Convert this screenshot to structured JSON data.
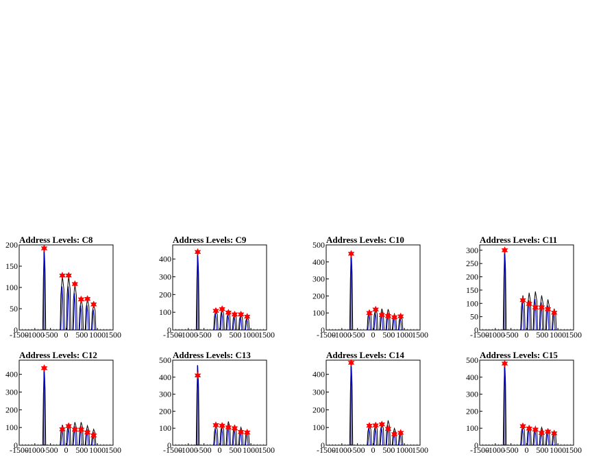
{
  "chart_data": [
    {
      "type": "histogram",
      "title": "Address Levels: C8",
      "xlim": [
        -1500,
        1500
      ],
      "ylim": [
        0,
        200
      ],
      "yticks": [
        0,
        50,
        100,
        150,
        200
      ],
      "xticks": [
        -1500,
        -1000,
        -500,
        0,
        500,
        1000,
        1500
      ],
      "peaks": [
        {
          "x": -700,
          "y": 192
        },
        {
          "x": -120,
          "y": 128
        },
        {
          "x": 80,
          "y": 128
        },
        {
          "x": 280,
          "y": 108
        },
        {
          "x": 480,
          "y": 72
        },
        {
          "x": 680,
          "y": 73
        },
        {
          "x": 880,
          "y": 60
        }
      ],
      "markers": [
        {
          "x": -700,
          "y": 192
        },
        {
          "x": -120,
          "y": 128
        },
        {
          "x": 80,
          "y": 128
        },
        {
          "x": 280,
          "y": 108
        },
        {
          "x": 480,
          "y": 72
        },
        {
          "x": 680,
          "y": 73
        },
        {
          "x": 880,
          "y": 60
        }
      ]
    },
    {
      "type": "histogram",
      "title": "Address Levels: C9",
      "xlim": [
        -1500,
        1500
      ],
      "ylim": [
        0,
        480
      ],
      "yticks": [
        0,
        100,
        200,
        300,
        400
      ],
      "xticks": [
        -1500,
        -1000,
        -500,
        0,
        500,
        1000,
        1500
      ],
      "peaks": [
        {
          "x": -700,
          "y": 440
        },
        {
          "x": -120,
          "y": 115
        },
        {
          "x": 80,
          "y": 125
        },
        {
          "x": 280,
          "y": 105
        },
        {
          "x": 480,
          "y": 95
        },
        {
          "x": 680,
          "y": 90
        },
        {
          "x": 880,
          "y": 75
        }
      ],
      "markers": [
        {
          "x": -700,
          "y": 440
        },
        {
          "x": -120,
          "y": 108
        },
        {
          "x": 80,
          "y": 118
        },
        {
          "x": 280,
          "y": 98
        },
        {
          "x": 480,
          "y": 88
        },
        {
          "x": 680,
          "y": 88
        },
        {
          "x": 880,
          "y": 75
        }
      ]
    },
    {
      "type": "histogram",
      "title": "Address Levels: C10",
      "xlim": [
        -1500,
        1500
      ],
      "ylim": [
        0,
        500
      ],
      "yticks": [
        0,
        100,
        200,
        300,
        400,
        500
      ],
      "xticks": [
        -1500,
        -1000,
        -500,
        0,
        500,
        1000,
        1500
      ],
      "peaks": [
        {
          "x": -700,
          "y": 460
        },
        {
          "x": -120,
          "y": 118
        },
        {
          "x": 80,
          "y": 128
        },
        {
          "x": 280,
          "y": 125
        },
        {
          "x": 480,
          "y": 122
        },
        {
          "x": 680,
          "y": 95
        },
        {
          "x": 880,
          "y": 85
        }
      ],
      "markers": [
        {
          "x": -700,
          "y": 448
        },
        {
          "x": -120,
          "y": 100
        },
        {
          "x": 80,
          "y": 120
        },
        {
          "x": 280,
          "y": 88
        },
        {
          "x": 480,
          "y": 82
        },
        {
          "x": 680,
          "y": 75
        },
        {
          "x": 880,
          "y": 80
        }
      ]
    },
    {
      "type": "histogram",
      "title": "Address Levels: C11",
      "xlim": [
        -1500,
        1500
      ],
      "ylim": [
        0,
        320
      ],
      "yticks": [
        0,
        50,
        100,
        150,
        200,
        250,
        300
      ],
      "xticks": [
        -1500,
        -1000,
        -500,
        0,
        500,
        1000,
        1500
      ],
      "peaks": [
        {
          "x": -700,
          "y": 305
        },
        {
          "x": -120,
          "y": 130
        },
        {
          "x": 80,
          "y": 140
        },
        {
          "x": 280,
          "y": 145
        },
        {
          "x": 480,
          "y": 130
        },
        {
          "x": 680,
          "y": 115
        },
        {
          "x": 880,
          "y": 80
        }
      ],
      "markers": [
        {
          "x": -700,
          "y": 300
        },
        {
          "x": -120,
          "y": 112
        },
        {
          "x": 80,
          "y": 98
        },
        {
          "x": 280,
          "y": 85
        },
        {
          "x": 480,
          "y": 85
        },
        {
          "x": 680,
          "y": 78
        },
        {
          "x": 880,
          "y": 65
        }
      ]
    },
    {
      "type": "histogram",
      "title": "Address Levels: C12",
      "xlim": [
        -1500,
        1500
      ],
      "ylim": [
        0,
        480
      ],
      "yticks": [
        0,
        100,
        200,
        300,
        400
      ],
      "xticks": [
        -1500,
        -1000,
        -500,
        0,
        500,
        1000,
        1500
      ],
      "peaks": [
        {
          "x": -700,
          "y": 440
        },
        {
          "x": -120,
          "y": 115
        },
        {
          "x": 80,
          "y": 125
        },
        {
          "x": 280,
          "y": 130
        },
        {
          "x": 480,
          "y": 130
        },
        {
          "x": 680,
          "y": 110
        },
        {
          "x": 880,
          "y": 90
        }
      ],
      "markers": [
        {
          "x": -700,
          "y": 435
        },
        {
          "x": -120,
          "y": 90
        },
        {
          "x": 80,
          "y": 108
        },
        {
          "x": 280,
          "y": 88
        },
        {
          "x": 480,
          "y": 88
        },
        {
          "x": 680,
          "y": 72
        },
        {
          "x": 880,
          "y": 55
        }
      ]
    },
    {
      "type": "histogram",
      "title": "Address Levels: C13",
      "xlim": [
        -1500,
        1500
      ],
      "ylim": [
        0,
        500
      ],
      "yticks": [
        0,
        100,
        200,
        300,
        400,
        500
      ],
      "xticks": [
        -1500,
        -1000,
        -500,
        0,
        500,
        1000,
        1500
      ],
      "peaks": [
        {
          "x": -700,
          "y": 470
        },
        {
          "x": -120,
          "y": 118
        },
        {
          "x": 80,
          "y": 125
        },
        {
          "x": 280,
          "y": 140
        },
        {
          "x": 480,
          "y": 120
        },
        {
          "x": 680,
          "y": 105
        },
        {
          "x": 880,
          "y": 90
        }
      ],
      "markers": [
        {
          "x": -700,
          "y": 410
        },
        {
          "x": -120,
          "y": 118
        },
        {
          "x": 80,
          "y": 115
        },
        {
          "x": 280,
          "y": 105
        },
        {
          "x": 480,
          "y": 100
        },
        {
          "x": 680,
          "y": 78
        },
        {
          "x": 880,
          "y": 75
        }
      ]
    },
    {
      "type": "histogram",
      "title": "Address Levels: C14",
      "xlim": [
        -1500,
        1500
      ],
      "ylim": [
        0,
        480
      ],
      "yticks": [
        0,
        100,
        200,
        300,
        400
      ],
      "xticks": [
        -1500,
        -1000,
        -500,
        0,
        500,
        1000,
        1500
      ],
      "peaks": [
        {
          "x": -700,
          "y": 470
        },
        {
          "x": -120,
          "y": 118
        },
        {
          "x": 80,
          "y": 122
        },
        {
          "x": 280,
          "y": 125
        },
        {
          "x": 480,
          "y": 140
        },
        {
          "x": 680,
          "y": 95
        },
        {
          "x": 880,
          "y": 80
        }
      ],
      "markers": [
        {
          "x": -700,
          "y": 465
        },
        {
          "x": -120,
          "y": 110
        },
        {
          "x": 80,
          "y": 112
        },
        {
          "x": 280,
          "y": 118
        },
        {
          "x": 480,
          "y": 92
        },
        {
          "x": 680,
          "y": 62
        },
        {
          "x": 880,
          "y": 70
        }
      ]
    },
    {
      "type": "histogram",
      "title": "Address Levels: C15",
      "xlim": [
        -1500,
        1500
      ],
      "ylim": [
        0,
        500
      ],
      "yticks": [
        0,
        100,
        200,
        300,
        400,
        500
      ],
      "xticks": [
        -1500,
        -1000,
        -500,
        0,
        500,
        1000,
        1500
      ],
      "peaks": [
        {
          "x": -700,
          "y": 490
        },
        {
          "x": -120,
          "y": 120
        },
        {
          "x": 80,
          "y": 118
        },
        {
          "x": 280,
          "y": 110
        },
        {
          "x": 480,
          "y": 105
        },
        {
          "x": 680,
          "y": 95
        },
        {
          "x": 880,
          "y": 80
        }
      ],
      "markers": [
        {
          "x": -700,
          "y": 480
        },
        {
          "x": -120,
          "y": 112
        },
        {
          "x": 80,
          "y": 98
        },
        {
          "x": 280,
          "y": 92
        },
        {
          "x": 480,
          "y": 72
        },
        {
          "x": 680,
          "y": 80
        },
        {
          "x": 880,
          "y": 70
        }
      ]
    }
  ],
  "colors": {
    "axis": "#000000",
    "histogram_black": "#000000",
    "histogram_blue": "#0000cc",
    "marker": "#ff0000"
  }
}
